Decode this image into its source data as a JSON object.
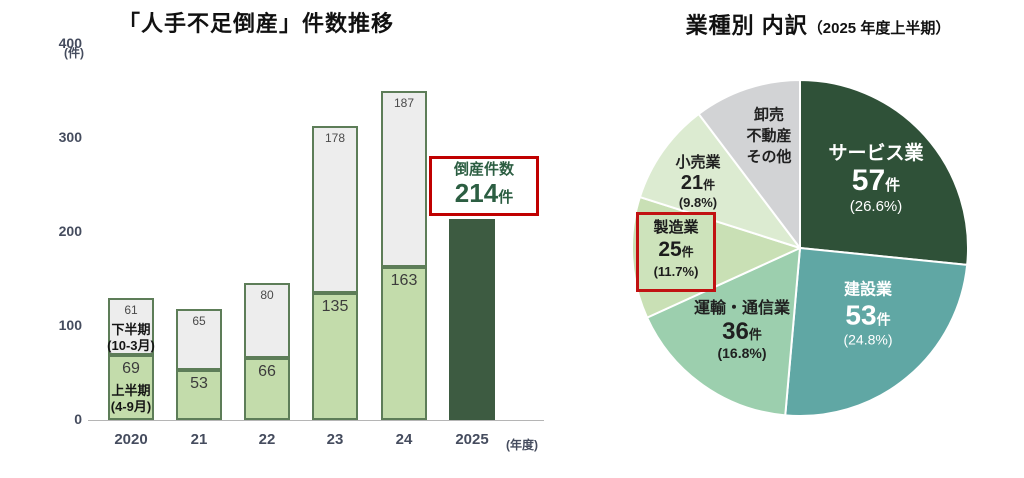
{
  "left_chart": {
    "title": "「人手不足倒産」件数推移",
    "y_unit": "(件)",
    "x_unit": "(年度)",
    "annotation": {
      "label": "倒産件数",
      "value": "214",
      "unit": "件"
    }
  },
  "right_chart": {
    "title_main": "業種別 内訳",
    "title_sub": "（2025 年度上半期）"
  },
  "chart_data": [
    {
      "type": "bar",
      "stacked": true,
      "title": "「人手不足倒産」件数推移",
      "categories": [
        "2020",
        "21",
        "22",
        "23",
        "24",
        "2025"
      ],
      "series": [
        {
          "name": "上半期",
          "period": "(4-9月)",
          "values": [
            69,
            53,
            66,
            135,
            163,
            null
          ],
          "color": "#c3dcab"
        },
        {
          "name": "下半期",
          "period": "(10-3月)",
          "values": [
            61,
            65,
            80,
            178,
            187,
            null
          ],
          "color": "#ededed"
        },
        {
          "name": "倒産件数",
          "values": [
            null,
            null,
            null,
            null,
            null,
            214
          ],
          "color": "#3d5b41"
        }
      ],
      "annotation": "倒産件数 214件",
      "ylabel": "(件)",
      "xlabel": "(年度)",
      "ylim": [
        0,
        400
      ],
      "yticks": [
        0,
        100,
        200,
        300,
        400
      ],
      "grid": false
    },
    {
      "type": "pie",
      "title": "業種別 内訳（2025 年度上半期）",
      "start_angle": "12-oclock, clockwise",
      "segments": [
        {
          "name": "サービス業",
          "count": "57",
          "unit": "件",
          "pct": "(26.6%)",
          "value": 26.6,
          "color": "#2f5138",
          "text_color": "#ffffff"
        },
        {
          "name": "建設業",
          "count": "53",
          "unit": "件",
          "pct": "(24.8%)",
          "value": 24.8,
          "color": "#60a7a4",
          "text_color": "#ffffff"
        },
        {
          "name": "運輸・通信業",
          "count": "36",
          "unit": "件",
          "pct": "(16.8%)",
          "value": 16.8,
          "color": "#9ccfae",
          "text_color": "#202020"
        },
        {
          "name": "製造業",
          "count": "25",
          "unit": "件",
          "pct": "(11.7%)",
          "value": 11.7,
          "color": "#c9e0b5",
          "text_color": "#1c1c1c",
          "highlighted": true
        },
        {
          "name": "小売業",
          "count": "21",
          "unit": "件",
          "pct": "(9.8%)",
          "value": 9.8,
          "color": "#dcebd1",
          "text_color": "#202020"
        },
        {
          "name_lines": [
            "卸売",
            "不動産",
            "その他"
          ],
          "value": null,
          "color": "#d2d3d5",
          "text_color": "#333333"
        }
      ]
    }
  ],
  "colors": {
    "bar_first_half": "#c3dcab",
    "bar_second_half": "#ededed",
    "bar_border": "#5d7d58",
    "bar_2025": "#3d5b41",
    "highlight_red": "#c00000",
    "callout_text": "#2c5e42",
    "axis_text": "#454c5e"
  }
}
